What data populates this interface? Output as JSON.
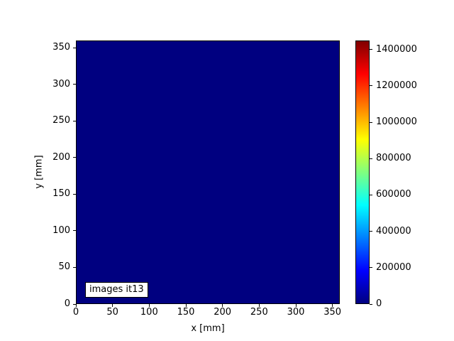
{
  "figure": {
    "background_color": "#ffffff",
    "border_color": "#000000",
    "text_color": "#000000"
  },
  "chart_data": {
    "type": "heatmap",
    "title": "",
    "xlabel": "x [mm]",
    "ylabel": "y [mm]",
    "xlim": [
      0,
      360
    ],
    "ylim": [
      0,
      360
    ],
    "x_ticks": [
      0,
      50,
      100,
      150,
      200,
      250,
      300,
      350
    ],
    "x_tick_labels": [
      "0",
      "50",
      "100",
      "150",
      "200",
      "250",
      "300",
      "350"
    ],
    "y_ticks": [
      0,
      50,
      100,
      150,
      200,
      250,
      300,
      350
    ],
    "y_tick_labels": [
      "0",
      "50",
      "100",
      "150",
      "200",
      "250",
      "300",
      "350"
    ],
    "grid": false,
    "legend": false,
    "annotation": "images it13",
    "colormap": "jet",
    "plot_fill_color": "#000080",
    "data_summary": "Uniform heatmap: entire 0-360 mm x 0-360 mm field at the minimum value (~0), rendered solid dark navy",
    "colorbar": {
      "position": "right",
      "vmin": 0,
      "vmax_estimate": 1450000,
      "ticks": [
        0,
        200000,
        400000,
        600000,
        800000,
        1000000,
        1200000,
        1400000
      ],
      "tick_labels": [
        "0",
        "200000",
        "400000",
        "600000",
        "800000",
        "1000000",
        "1200000",
        "1400000"
      ],
      "gradient_stops": [
        {
          "pos": 0.0,
          "color": "#000080"
        },
        {
          "pos": 0.125,
          "color": "#0000ff"
        },
        {
          "pos": 0.375,
          "color": "#00ffff"
        },
        {
          "pos": 0.625,
          "color": "#ffff00"
        },
        {
          "pos": 0.875,
          "color": "#ff0000"
        },
        {
          "pos": 1.0,
          "color": "#800000"
        }
      ]
    }
  }
}
